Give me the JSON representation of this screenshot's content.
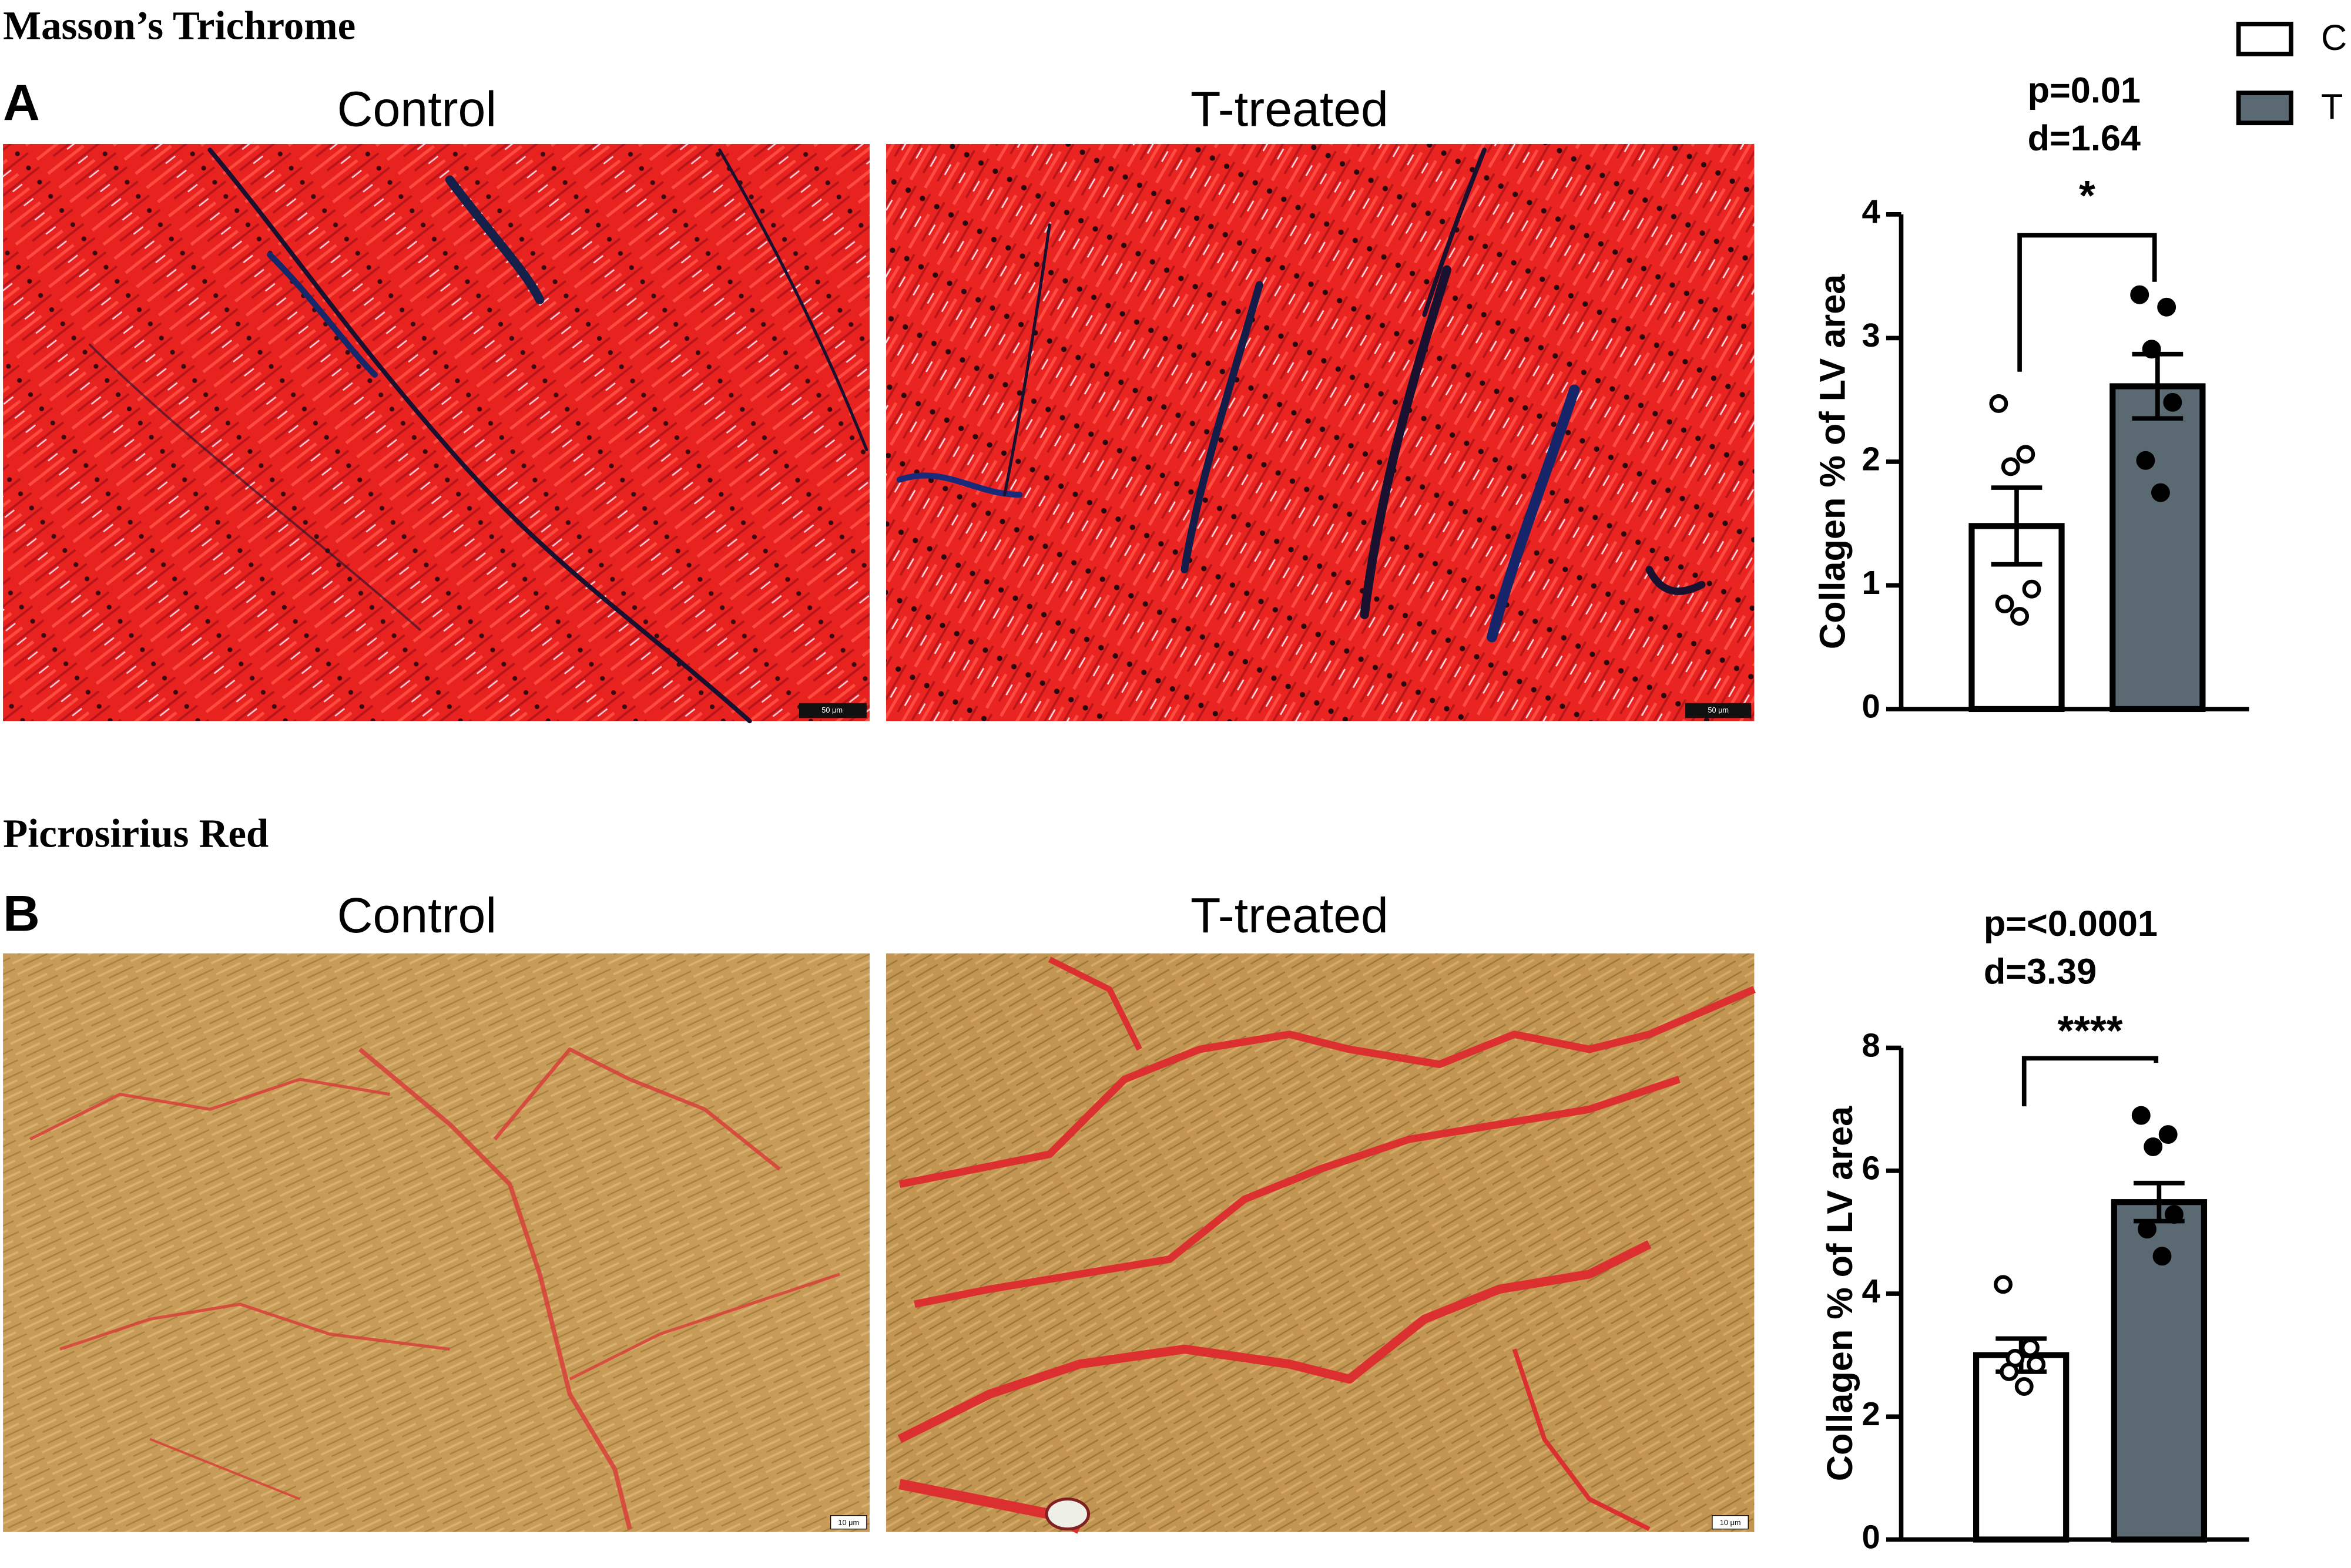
{
  "figure": {
    "sections": [
      {
        "title": "Masson’s Trichrome",
        "panel": "A",
        "images": [
          {
            "label": "Control",
            "scale_bar": "50 μm"
          },
          {
            "label": "T-treated",
            "scale_bar": "50 μm"
          }
        ]
      },
      {
        "title": "Picrosirius Red",
        "panel": "B",
        "images": [
          {
            "label": "Control",
            "scale_bar": "10 μm"
          },
          {
            "label": "T-treated",
            "scale_bar": "10 μm"
          }
        ]
      }
    ]
  },
  "chart_data": [
    {
      "type": "bar",
      "ylabel": "Collagen % of LV area",
      "ylim": [
        0,
        4
      ],
      "yticks": [
        0,
        1,
        2,
        3,
        4
      ],
      "annotations": [
        "p=0.01",
        "d=1.64"
      ],
      "significance": "*",
      "series": [
        {
          "name": "C",
          "color": "#ffffff",
          "values": [
            1.48
          ],
          "errors": [
            0.31
          ],
          "points": [
            2.47,
            2.06,
            1.96,
            0.97,
            0.85,
            0.75
          ]
        },
        {
          "name": "T",
          "color": "#5b6a72",
          "values": [
            2.61
          ],
          "errors": [
            0.26
          ],
          "points": [
            3.35,
            3.25,
            2.91,
            2.48,
            2.01,
            1.75
          ]
        }
      ]
    },
    {
      "type": "bar",
      "ylabel": "Collagen % of LV area",
      "ylim": [
        0,
        8
      ],
      "yticks": [
        0,
        2,
        4,
        6,
        8
      ],
      "annotations": [
        "p=<0.0001",
        "d=3.39"
      ],
      "significance": "****",
      "series": [
        {
          "color": "#ffffff",
          "values": [
            3.0
          ],
          "errors": [
            0.27
          ],
          "points": [
            4.15,
            3.12,
            2.95,
            2.85,
            2.73,
            2.49
          ]
        },
        {
          "color": "#5b6a72",
          "values": [
            5.49
          ],
          "errors": [
            0.31
          ],
          "points": [
            6.9,
            6.59,
            6.39,
            5.29,
            5.05,
            4.61
          ]
        }
      ]
    }
  ]
}
